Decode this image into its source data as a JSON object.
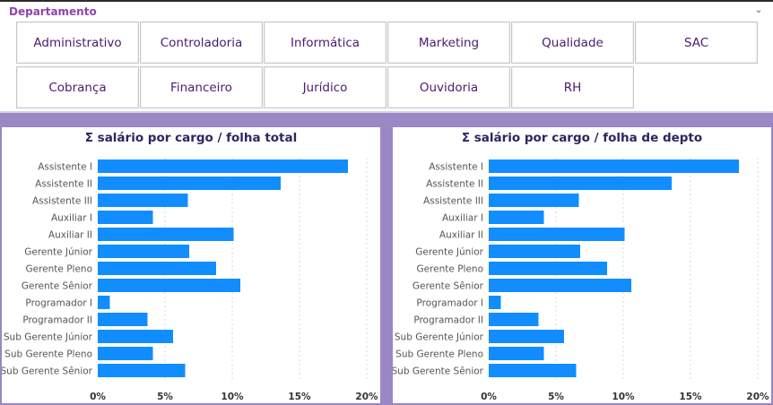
{
  "slicer": {
    "title": "Departamento",
    "chevron": "chevron-down-icon",
    "row1": [
      "Administrativo",
      "Controladoria",
      "Informática",
      "Marketing",
      "Qualidade",
      "SAC"
    ],
    "row2": [
      "Cobrança",
      "Financeiro",
      "Jurídico",
      "Ouvidoria",
      "RH"
    ]
  },
  "chart_data": [
    {
      "type": "bar",
      "orientation": "horizontal",
      "title": "Σ salário por cargo / folha total",
      "categories": [
        "Assistente I",
        "Assistente II",
        "Assistente III",
        "Auxiliar I",
        "Auxiliar II",
        "Gerente Júnior",
        "Gerente Pleno",
        "Gerente Sênior",
        "Programador I",
        "Programador II",
        "Sub Gerente Júnior",
        "Sub Gerente Pleno",
        "Sub Gerente Sênior"
      ],
      "values": [
        18.6,
        13.6,
        6.7,
        4.1,
        10.1,
        6.8,
        8.8,
        10.6,
        0.9,
        3.7,
        5.6,
        4.1,
        6.5
      ],
      "xlim": [
        0,
        20
      ],
      "ticks": [
        "0%",
        "5%",
        "10%",
        "15%",
        "20%"
      ],
      "tick_values": [
        0,
        5,
        10,
        15,
        20
      ],
      "color": "#118dff",
      "grid": true
    },
    {
      "type": "bar",
      "orientation": "horizontal",
      "title": "Σ salário por cargo / folha de depto",
      "categories": [
        "Assistente I",
        "Assistente II",
        "Assistente III",
        "Auxiliar I",
        "Auxiliar II",
        "Gerente Júnior",
        "Gerente Pleno",
        "Gerente Sênior",
        "Programador I",
        "Programador II",
        "Sub Gerente Júnior",
        "Sub Gerente Pleno",
        "Sub Gerente Sênior"
      ],
      "values": [
        18.6,
        13.6,
        6.7,
        4.1,
        10.1,
        6.8,
        8.8,
        10.6,
        0.9,
        3.7,
        5.6,
        4.1,
        6.5
      ],
      "xlim": [
        0,
        20
      ],
      "ticks": [
        "0%",
        "5%",
        "10%",
        "15%",
        "20%"
      ],
      "tick_values": [
        0,
        5,
        10,
        15,
        20
      ],
      "color": "#118dff",
      "grid": true
    }
  ]
}
